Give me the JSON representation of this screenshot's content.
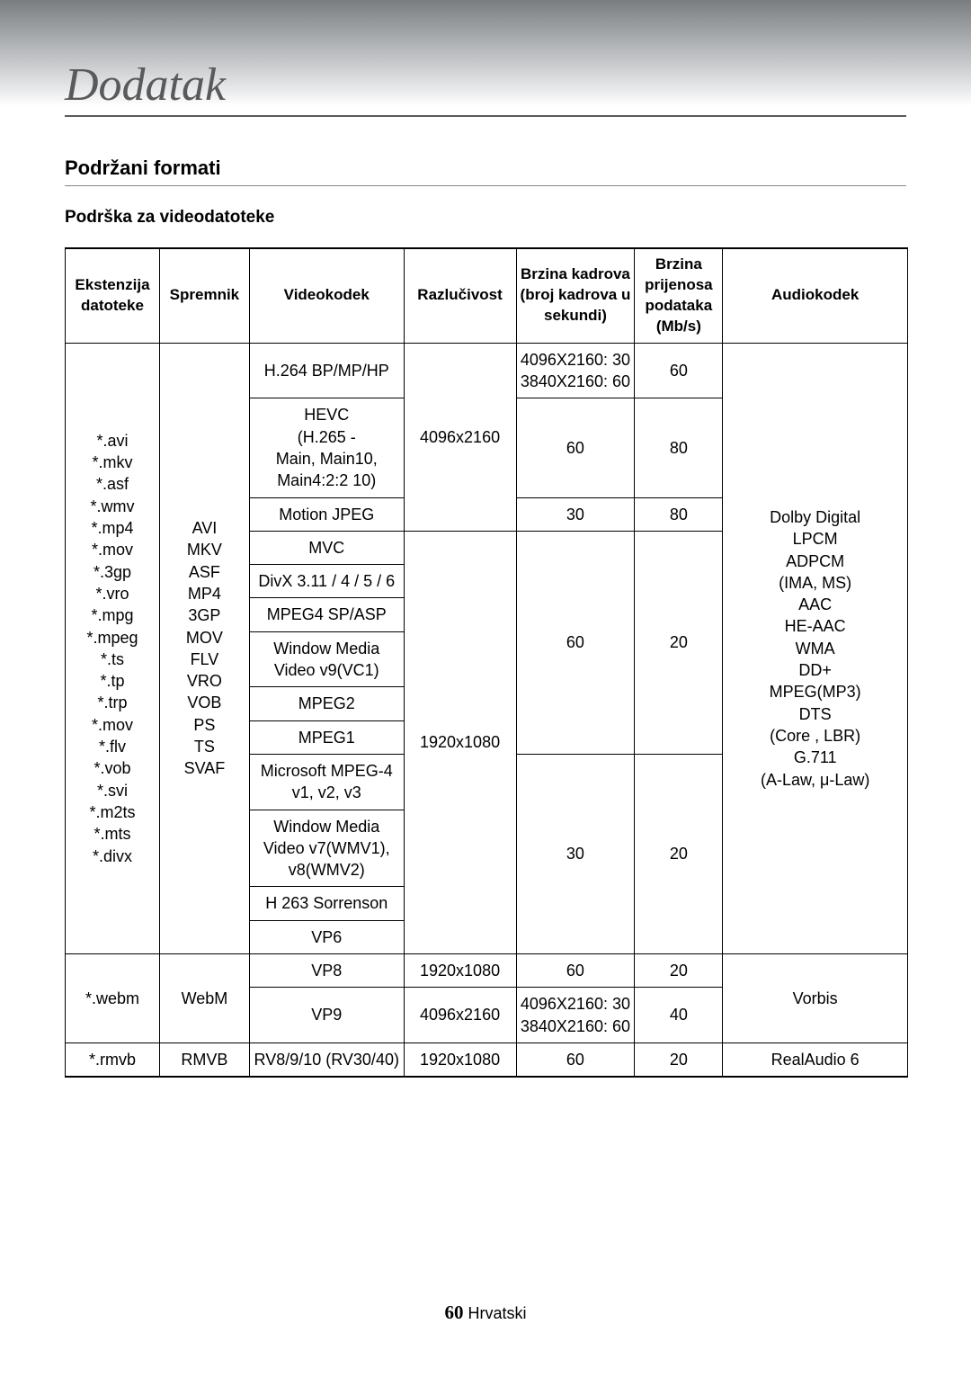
{
  "title": "Dodatak",
  "section": "Podržani formati",
  "sub": "Podrška za videodatoteke",
  "footer_page": "60",
  "footer_lang": "Hrvatski",
  "columns": {
    "c1": "Ekstenzija datoteke",
    "c2": "Spremnik",
    "c3": "Videokodek",
    "c4": "Razlučivost",
    "c5": "Brzina kadrova (broj kadrova u sekundi)",
    "c6": "Brzina prijenosa podataka (Mb/s)",
    "c7": "Audiokodek"
  },
  "g1": {
    "extensions": "*.avi\n*.mkv\n*.asf\n*.wmv\n*.mp4\n*.mov\n*.3gp\n*.vro\n*.mpg\n*.mpeg\n*.ts\n*.tp\n*.trp\n*.mov\n*.flv\n*.vob\n*.svi\n*.m2ts\n*.mts\n*.divx",
    "containers": "AVI\nMKV\nASF\nMP4\n3GP\nMOV\nFLV\nVRO\nVOB\nPS\nTS\nSVAF",
    "audio": "Dolby Digital\nLPCM\nADPCM\n(IMA, MS)\nAAC\nHE-AAC\nWMA\nDD+\nMPEG(MP3)\nDTS\n(Core , LBR)\nG.711\n(A-Law, μ-Law)",
    "r1_codec": "H.264 BP/MP/HP",
    "r1_res": "4096x2160",
    "r1_fps": "4096X2160: 30\n3840X2160: 60",
    "r1_bit": "60",
    "r2_codec": "HEVC\n(H.265 -\nMain, Main10,\nMain4:2:2 10)",
    "r2_fps": "60",
    "r2_bit": "80",
    "r3_codec": "Motion JPEG",
    "r3_fps": "30",
    "r3_bit": "80",
    "r4_codec": "MVC",
    "r4_res": "1920x1080",
    "r4_fps": "60",
    "r4_bit": "20",
    "r5_codec": "DivX 3.11 / 4 / 5 / 6",
    "r6_codec": "MPEG4 SP/ASP",
    "r7_codec": "Window Media Video v9(VC1)",
    "r8_codec": "MPEG2",
    "r9_codec": "MPEG1",
    "r10_codec": "Microsoft MPEG-4 v1, v2, v3",
    "r10_fps": "30",
    "r10_bit": "20",
    "r11_codec": "Window Media Video v7(WMV1), v8(WMV2)",
    "r12_codec": "H 263 Sorrenson",
    "r13_codec": "VP6"
  },
  "g2": {
    "ext": "*.webm",
    "cont": "WebM",
    "r1_codec": "VP8",
    "r1_res": "1920x1080",
    "r1_fps": "60",
    "r1_bit": "20",
    "r2_codec": "VP9",
    "r2_res": "4096x2160",
    "r2_fps": "4096X2160: 30\n3840X2160: 60",
    "r2_bit": "40",
    "audio": "Vorbis"
  },
  "g3": {
    "ext": "*.rmvb",
    "cont": "RMVB",
    "codec": "RV8/9/10 (RV30/40)",
    "res": "1920x1080",
    "fps": "60",
    "bit": "20",
    "audio": "RealAudio 6"
  }
}
